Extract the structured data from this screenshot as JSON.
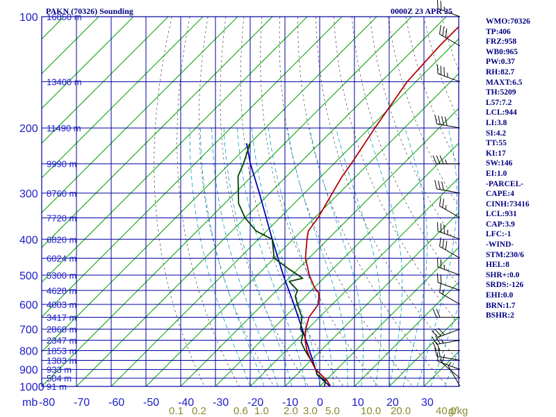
{
  "header": {
    "title_left": "PAKN (70326) Sounding",
    "title_right": "0000Z 23 APR 25"
  },
  "stats": [
    "WMO:70326",
    "TP:406",
    "FRZ:958",
    "WB0:965",
    "PW:0.37",
    "RH:82.7",
    "MAXT:6.5",
    "TH:5209",
    "L57:7.2",
    "LCL:944",
    "LI:3.8",
    "SI:4.2",
    "TT:55",
    "KI:17",
    "SW:146",
    "EI:1.0",
    "-PARCEL-",
    "CAPE:4",
    "CINH:73416",
    "LCL:931",
    "CAP:3.9",
    "LFC:-1",
    "-WIND-",
    "STM:230/6",
    "HEL:8",
    "SHR+:0.0",
    "SRDS:-126",
    "EHI:0.0",
    "BRN:1.7",
    "BSHR:2"
  ],
  "colors": {
    "grid": "#0000a0",
    "isotherm": "#00a000",
    "dry_adiabat": "#404040",
    "moist_adiabat": "#00a0c0",
    "temperature": "#b00000",
    "dewpoint": "#004000",
    "parcel": "#0000b0",
    "labels": "#1c1cc8",
    "mixing_ratio_labels": "#8a8a30"
  },
  "chart_data": {
    "type": "skew-t",
    "pressure_unit_label": "mb",
    "pressure_levels": [
      100,
      200,
      300,
      400,
      500,
      600,
      700,
      800,
      900,
      1000
    ],
    "pressure_range": [
      100,
      1000
    ],
    "temperature_range": [
      -80,
      40
    ],
    "temperature_ticks": [
      -80,
      -70,
      -60,
      -50,
      -40,
      -30,
      -20,
      -10,
      0,
      10,
      20,
      30
    ],
    "heights": [
      {
        "p": 100,
        "label": "16050 m"
      },
      {
        "p": 150,
        "label": "13400 m"
      },
      {
        "p": 200,
        "label": "11490 m"
      },
      {
        "p": 250,
        "label": "9990 m"
      },
      {
        "p": 300,
        "label": "8760 m"
      },
      {
        "p": 350,
        "label": "7720 m"
      },
      {
        "p": 400,
        "label": "6820 m"
      },
      {
        "p": 450,
        "label": "6024 m"
      },
      {
        "p": 500,
        "label": "5300 m"
      },
      {
        "p": 550,
        "label": "4628 m"
      },
      {
        "p": 600,
        "label": "4003 m"
      },
      {
        "p": 650,
        "label": "3417 m"
      },
      {
        "p": 700,
        "label": "2868 m"
      },
      {
        "p": 750,
        "label": "2347 m"
      },
      {
        "p": 800,
        "label": "1853 m"
      },
      {
        "p": 850,
        "label": "1383 m"
      },
      {
        "p": 900,
        "label": "933 m"
      },
      {
        "p": 950,
        "label": "504 m"
      },
      {
        "p": 1000,
        "label": "91 m"
      }
    ],
    "mixing_ratio_labels": [
      "0.1",
      "0.2",
      "0.6",
      "1.0",
      "2.0",
      "3.0",
      "5.0",
      "10.0",
      "20.0",
      "40.0",
      "g/kg"
    ],
    "temperature_profile": [
      {
        "p": 1005,
        "t": 3.5
      },
      {
        "p": 965,
        "t": 0.5
      },
      {
        "p": 900,
        "t": -6.0
      },
      {
        "p": 850,
        "t": -10.0
      },
      {
        "p": 800,
        "t": -14.0
      },
      {
        "p": 750,
        "t": -17.5
      },
      {
        "p": 700,
        "t": -20.5
      },
      {
        "p": 650,
        "t": -23.0
      },
      {
        "p": 600,
        "t": -24.0
      },
      {
        "p": 560,
        "t": -27.0
      },
      {
        "p": 540,
        "t": -30.0
      },
      {
        "p": 500,
        "t": -35.0
      },
      {
        "p": 450,
        "t": -41.0
      },
      {
        "p": 400,
        "t": -46.0
      },
      {
        "p": 380,
        "t": -48.0
      },
      {
        "p": 350,
        "t": -49.0
      },
      {
        "p": 300,
        "t": -52.0
      },
      {
        "p": 270,
        "t": -54.0
      },
      {
        "p": 250,
        "t": -55.0
      },
      {
        "p": 220,
        "t": -57.0
      },
      {
        "p": 200,
        "t": -58.5
      },
      {
        "p": 150,
        "t": -62.5
      },
      {
        "p": 120,
        "t": -63.5
      },
      {
        "p": 100,
        "t": -63.5
      }
    ],
    "dewpoint_profile": [
      {
        "p": 1005,
        "t": 1.5
      },
      {
        "p": 990,
        "t": 1.0
      },
      {
        "p": 965,
        "t": 0.0
      },
      {
        "p": 930,
        "t": -4.0
      },
      {
        "p": 900,
        "t": -6.0
      },
      {
        "p": 850,
        "t": -10.0
      },
      {
        "p": 800,
        "t": -14.5
      },
      {
        "p": 760,
        "t": -18.0
      },
      {
        "p": 720,
        "t": -20.0
      },
      {
        "p": 700,
        "t": -22.0
      },
      {
        "p": 650,
        "t": -25.0
      },
      {
        "p": 600,
        "t": -30.0
      },
      {
        "p": 570,
        "t": -33.0
      },
      {
        "p": 550,
        "t": -34.0
      },
      {
        "p": 520,
        "t": -39.0
      },
      {
        "p": 510,
        "t": -36.0
      },
      {
        "p": 480,
        "t": -43.0
      },
      {
        "p": 450,
        "t": -50.0
      },
      {
        "p": 400,
        "t": -56.0
      },
      {
        "p": 380,
        "t": -63.0
      },
      {
        "p": 350,
        "t": -70.0
      },
      {
        "p": 320,
        "t": -76.0
      },
      {
        "p": 270,
        "t": -84.0
      },
      {
        "p": 250,
        "t": -86.0
      },
      {
        "p": 220,
        "t": -90.0
      }
    ],
    "parcel_profile": [
      {
        "p": 1005,
        "t": 3.5
      },
      {
        "p": 931,
        "t": -4.0
      },
      {
        "p": 850,
        "t": -9.5
      },
      {
        "p": 700,
        "t": -21.5
      },
      {
        "p": 600,
        "t": -31.0
      },
      {
        "p": 500,
        "t": -42.5
      },
      {
        "p": 400,
        "t": -56.0
      },
      {
        "p": 300,
        "t": -73.0
      },
      {
        "p": 250,
        "t": -84.0
      },
      {
        "p": 220,
        "t": -91.0
      }
    ],
    "wind_barbs": [
      {
        "p": 1000,
        "dir": 330,
        "spd": 5
      },
      {
        "p": 950,
        "dir": 310,
        "spd": 10
      },
      {
        "p": 900,
        "dir": 290,
        "spd": 15
      },
      {
        "p": 850,
        "dir": 280,
        "spd": 20
      },
      {
        "p": 800,
        "dir": 270,
        "spd": 20
      },
      {
        "p": 750,
        "dir": 260,
        "spd": 25
      },
      {
        "p": 700,
        "dir": 250,
        "spd": 30
      },
      {
        "p": 650,
        "dir": 270,
        "spd": 20
      },
      {
        "p": 600,
        "dir": 300,
        "spd": 15
      },
      {
        "p": 550,
        "dir": 290,
        "spd": 20
      },
      {
        "p": 500,
        "dir": 290,
        "spd": 25
      },
      {
        "p": 450,
        "dir": 300,
        "spd": 30
      },
      {
        "p": 400,
        "dir": 290,
        "spd": 35
      },
      {
        "p": 350,
        "dir": 300,
        "spd": 25
      },
      {
        "p": 300,
        "dir": 280,
        "spd": 30
      },
      {
        "p": 250,
        "dir": 270,
        "spd": 35
      },
      {
        "p": 200,
        "dir": 280,
        "spd": 40
      },
      {
        "p": 150,
        "dir": 290,
        "spd": 35
      },
      {
        "p": 120,
        "dir": 300,
        "spd": 30
      },
      {
        "p": 100,
        "dir": 290,
        "spd": 25
      }
    ]
  }
}
